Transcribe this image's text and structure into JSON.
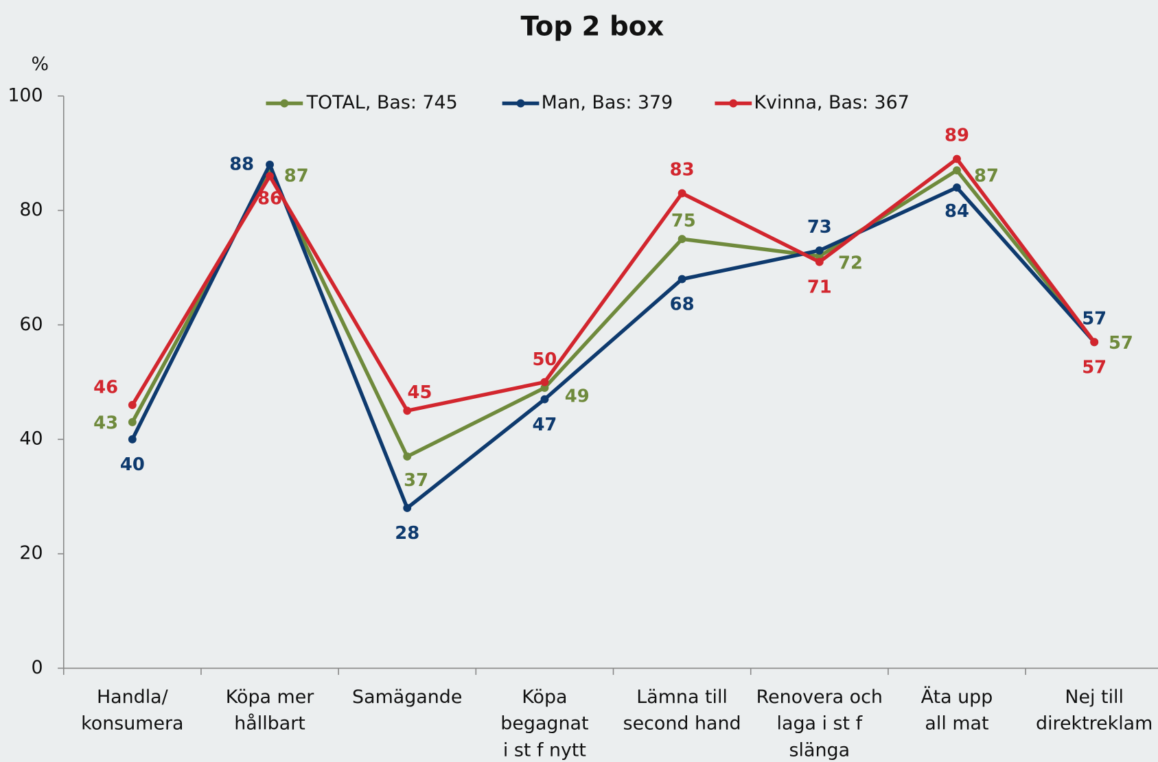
{
  "chart_data": {
    "type": "line",
    "title": "Top 2 box",
    "y_label": "%",
    "categories": [
      [
        "Handla/",
        "konsumera"
      ],
      [
        "Köpa mer",
        "hållbart"
      ],
      [
        "Samägande"
      ],
      [
        "Köpa",
        "begagnat",
        "i st f nytt"
      ],
      [
        "Lämna till",
        "second hand"
      ],
      [
        "Renovera och",
        "laga i st f",
        "slänga"
      ],
      [
        "Äta upp",
        "all mat"
      ],
      [
        "Nej till",
        "direktreklam"
      ]
    ],
    "series": [
      {
        "name": "TOTAL, Bas: 745",
        "color": "#6f8a3c",
        "values": [
          43,
          87,
          37,
          49,
          75,
          72,
          87,
          57
        ]
      },
      {
        "name": "Man, Bas: 379",
        "color": "#0e3a6e",
        "values": [
          40,
          88,
          28,
          47,
          68,
          73,
          84,
          57
        ]
      },
      {
        "name": "Kvinna, Bas: 367",
        "color": "#d2262e",
        "values": [
          46,
          86,
          45,
          50,
          83,
          71,
          89,
          57
        ]
      }
    ],
    "ylim": [
      0,
      100
    ],
    "yticks": [
      0,
      20,
      40,
      60,
      80,
      100
    ],
    "grid": false,
    "legend": "top"
  }
}
